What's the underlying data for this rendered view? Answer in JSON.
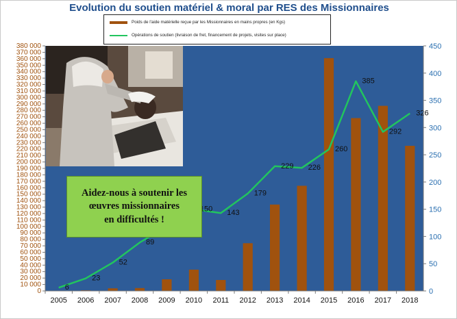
{
  "title": "Evolution du soutien matériel  & moral par RES des Missionnaires",
  "legend": {
    "bar_label": "Poids de l'aide matérielle reçue par les Missionnaires en mains propres (en Kgs)",
    "line_label": "Opérations de soutien (livraison de fret, financement de projets, visites sur place)"
  },
  "callout": {
    "text": "Aidez-nous à soutenir les\nœuvres missionnaires\nen difficultés !"
  },
  "colors": {
    "plot_bg": "#2e5c98",
    "bar": "#a0520e",
    "line": "#22c55e",
    "left_axis_text": "#a0520e",
    "right_axis_text": "#2a6fb0",
    "callout_bg": "#8fd14f",
    "title": "#1f4e8c"
  },
  "photo": {
    "icon": "photo-nun-caring-for-patient"
  },
  "chart_data": {
    "type": "bar",
    "categories": [
      "2005",
      "2006",
      "2007",
      "2008",
      "2009",
      "2010",
      "2011",
      "2012",
      "2013",
      "2014",
      "2015",
      "2016",
      "2017",
      "2018"
    ],
    "series": [
      {
        "name": "Poids de l'aide matérielle reçue par les Missionnaires en mains propres (en Kgs)",
        "type": "bar",
        "axis": "left",
        "values": [
          0,
          1000,
          4000,
          4500,
          18000,
          33000,
          17000,
          74000,
          134000,
          163000,
          361000,
          268000,
          287000,
          225000
        ]
      },
      {
        "name": "Opérations de soutien (livraison de fret, financement de projets, visites sur place)",
        "type": "line",
        "axis": "right",
        "values": [
          6,
          23,
          52,
          89,
          118,
          150,
          143,
          179,
          229,
          226,
          260,
          385,
          292,
          326
        ],
        "labels": [
          "6",
          "23",
          "52",
          "89",
          "",
          "150",
          "143",
          "179",
          "229",
          "226",
          "260",
          "385",
          "292",
          "326"
        ]
      }
    ],
    "left_axis": {
      "min": 0,
      "max": 380000,
      "step": 10000,
      "tick_labels": [
        "0",
        "10 000",
        "20 000",
        "30 000",
        "40 000",
        "50 000",
        "60 000",
        "70 000",
        "80 000",
        "90 000",
        "100 000",
        "110 000",
        "120 000",
        "130 000",
        "140 000",
        "150 000",
        "160 000",
        "170 000",
        "180 000",
        "190 000",
        "200 000",
        "210 000",
        "220 000",
        "230 000",
        "240 000",
        "250 000",
        "260 000",
        "270 000",
        "280 000",
        "290 000",
        "300 000",
        "310 000",
        "320 000",
        "330 000",
        "340 000",
        "350 000",
        "360 000",
        "370 000",
        "380 000"
      ]
    },
    "right_axis": {
      "min": 0,
      "max": 450,
      "step": 50,
      "tick_labels": [
        "0",
        "50",
        "100",
        "150",
        "200",
        "250",
        "300",
        "350",
        "400",
        "450"
      ]
    },
    "legend_position": "top",
    "grid": false
  }
}
